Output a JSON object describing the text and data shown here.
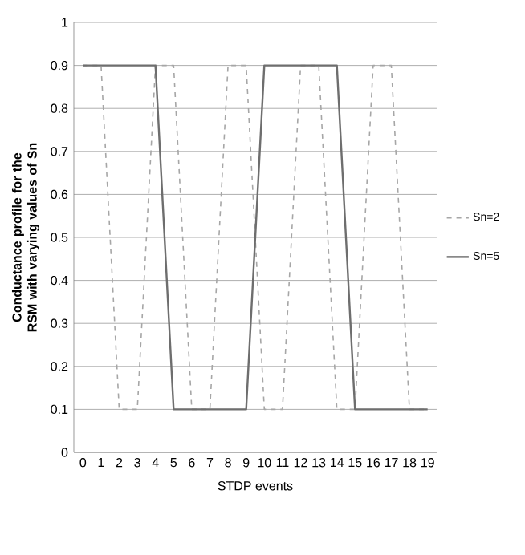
{
  "chart_data": {
    "type": "line",
    "xlabel": "STDP events",
    "ylabel": "Conductance profile for the RSM with varying values of Sn",
    "categories": [
      "0",
      "1",
      "2",
      "3",
      "4",
      "5",
      "6",
      "7",
      "8",
      "9",
      "10",
      "11",
      "12",
      "13",
      "14",
      "15",
      "16",
      "17",
      "18",
      "19"
    ],
    "series": [
      {
        "name": "Sn=2",
        "color": "#a6a6a6",
        "line_style": "dashed",
        "values": [
          0.9,
          0.9,
          0.1,
          0.1,
          0.9,
          0.9,
          0.1,
          0.1,
          0.9,
          0.9,
          0.1,
          0.1,
          0.9,
          0.9,
          0.1,
          0.1,
          0.9,
          0.9,
          0.1,
          0.1
        ]
      },
      {
        "name": "Sn=5",
        "color": "#6e6e6e",
        "line_style": "solid",
        "values": [
          0.9,
          0.9,
          0.9,
          0.9,
          0.9,
          0.1,
          0.1,
          0.1,
          0.1,
          0.1,
          0.9,
          0.9,
          0.9,
          0.9,
          0.9,
          0.1,
          0.1,
          0.1,
          0.1,
          0.1
        ]
      }
    ],
    "ylim": [
      0,
      1
    ],
    "yticks": [
      0,
      0.1,
      0.2,
      0.3,
      0.4,
      0.5,
      0.6,
      0.7,
      0.8,
      0.9,
      1
    ],
    "grid": "y",
    "legend": "right",
    "marker": "none"
  }
}
